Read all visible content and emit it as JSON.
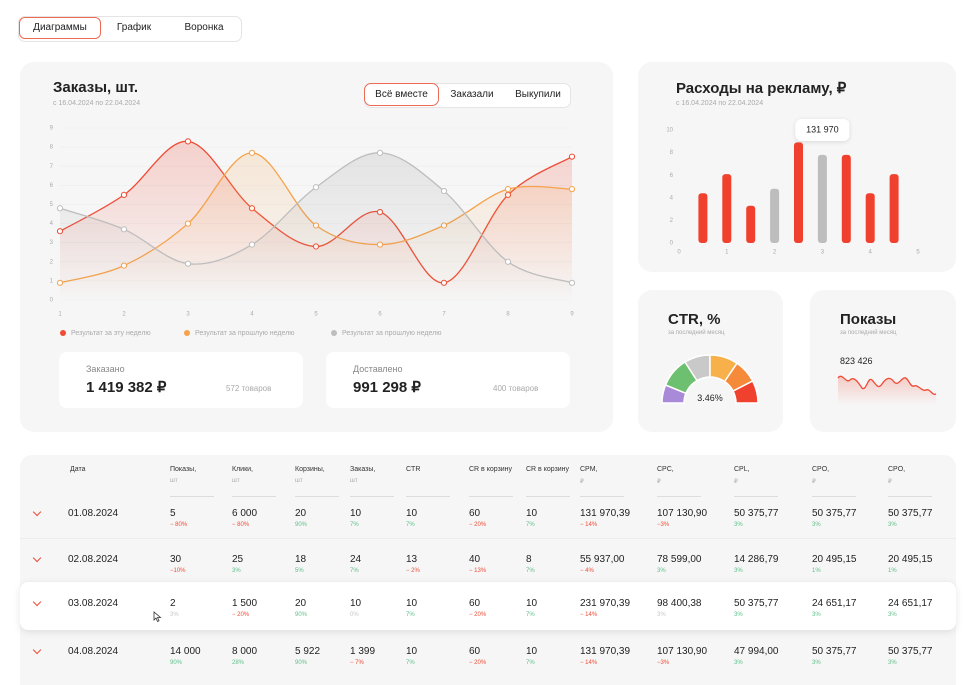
{
  "tabs": {
    "items": [
      "Диаграммы",
      "График",
      "Воронка"
    ],
    "active": 0
  },
  "orders": {
    "title": "Заказы, шт.",
    "subtitle": "с 16.04.2024 по 22.04.2024",
    "toggle": {
      "items": [
        "Всё вместе",
        "Заказали",
        "Выкупили"
      ],
      "active": 0
    },
    "stats": [
      {
        "label": "Заказано",
        "value": "1 419 382 ₽",
        "note": "572 товаров"
      },
      {
        "label": "Доставлено",
        "value": "991 298 ₽",
        "note": "400 товаров"
      }
    ]
  },
  "ads": {
    "title": "Расходы на рекламу, ₽",
    "subtitle": "с 16.04.2024 по 22.04.2024"
  },
  "ctr": {
    "title": "CTR, %",
    "subtitle": "за последний месяц",
    "value": "3.46%"
  },
  "impressions": {
    "title": "Показы",
    "subtitle": "за последний месяц",
    "value": "823 426"
  },
  "chart_data": [
    {
      "type": "line",
      "x": [
        1,
        2,
        3,
        4,
        5,
        6,
        7,
        8,
        9
      ],
      "xlim": [
        1,
        9
      ],
      "xticks": [
        1,
        2,
        3,
        4,
        5,
        6,
        7,
        8,
        9
      ],
      "ylim": [
        0,
        9
      ],
      "yticks": [
        0,
        1,
        2,
        3,
        4,
        5,
        6,
        7,
        8,
        9
      ],
      "grid": true,
      "legend": "bottom",
      "series": [
        {
          "name": "Результат за эту неделю",
          "color": "#ef4b35",
          "values": [
            3.6,
            5.5,
            8.3,
            4.8,
            2.8,
            4.6,
            0.9,
            5.5,
            7.5
          ]
        },
        {
          "name": "Результат за прошлую неделю",
          "color": "#f5a24a",
          "values": [
            0.9,
            1.8,
            4.0,
            7.7,
            3.9,
            2.9,
            3.9,
            5.8,
            5.8
          ]
        },
        {
          "name": "Результат за прошлую неделю",
          "color": "#bdbdbd",
          "values": [
            4.8,
            3.7,
            1.9,
            2.9,
            5.9,
            7.7,
            5.7,
            2.0,
            0.9
          ]
        }
      ]
    },
    {
      "type": "bar",
      "x": [
        0.5,
        1,
        1.5,
        2,
        2.5,
        3,
        3.5,
        4,
        4.5
      ],
      "xlim": [
        0,
        5
      ],
      "xticks": [
        0,
        1,
        2,
        3,
        4,
        5
      ],
      "ylim": [
        0,
        10
      ],
      "yticks": [
        0,
        2,
        4,
        6,
        8,
        10
      ],
      "values": [
        4.4,
        6.1,
        3.3,
        4.8,
        8.9,
        7.8,
        7.8,
        4.4,
        6.1
      ],
      "colors": [
        "#f0412e",
        "#f0412e",
        "#f0412e",
        "#bdbdbd",
        "#f0412e",
        "#bdbdbd",
        "#f0412e",
        "#f0412e",
        "#f0412e"
      ],
      "annotation": {
        "text": "131 970",
        "x": 3
      }
    }
  ],
  "table": {
    "headers": [
      {
        "label": "Дата"
      },
      {
        "label": "Показы,",
        "unit": "шт"
      },
      {
        "label": "Клики,",
        "unit": "шт"
      },
      {
        "label": "Корзины,",
        "unit": "шт"
      },
      {
        "label": "Заказы,",
        "unit": "шт"
      },
      {
        "label": "CTR"
      },
      {
        "label": "CR в корзину"
      },
      {
        "label": "CR в корзину"
      },
      {
        "label": "CPM,",
        "unit": "₽"
      },
      {
        "label": "CPC,",
        "unit": "₽"
      },
      {
        "label": "CPL,",
        "unit": "₽"
      },
      {
        "label": "CPO,",
        "unit": "₽"
      },
      {
        "label": "CPO,",
        "unit": "₽"
      }
    ],
    "highlighted_row": 2,
    "rows": [
      {
        "date": "01.08.2024",
        "cells": [
          {
            "value": "5",
            "change": "− 80%",
            "trend": "down"
          },
          {
            "value": "6 000",
            "change": "− 80%",
            "trend": "down"
          },
          {
            "value": "20",
            "change": "90%",
            "trend": "up"
          },
          {
            "value": "10",
            "change": "7%",
            "trend": "up"
          },
          {
            "value": "10",
            "change": "7%",
            "trend": "up"
          },
          {
            "value": "60",
            "change": "− 20%",
            "trend": "down"
          },
          {
            "value": "10",
            "change": "7%",
            "trend": "up"
          },
          {
            "value": "131 970,39",
            "change": "− 14%",
            "trend": "down"
          },
          {
            "value": "107 130,90",
            "change": "−3%",
            "trend": "down"
          },
          {
            "value": "50 375,77",
            "change": "3%",
            "trend": "up"
          },
          {
            "value": "50 375,77",
            "change": "3%",
            "trend": "up"
          },
          {
            "value": "50 375,77",
            "change": "3%",
            "trend": "up"
          }
        ]
      },
      {
        "date": "02.08.2024",
        "cells": [
          {
            "value": "30",
            "change": "−10%",
            "trend": "down"
          },
          {
            "value": "25",
            "change": "3%",
            "trend": "up"
          },
          {
            "value": "18",
            "change": "5%",
            "trend": "up"
          },
          {
            "value": "24",
            "change": "7%",
            "trend": "up"
          },
          {
            "value": "13",
            "change": "− 2%",
            "trend": "down"
          },
          {
            "value": "40",
            "change": "− 13%",
            "trend": "down"
          },
          {
            "value": "8",
            "change": "7%",
            "trend": "up"
          },
          {
            "value": "55 937,00",
            "change": "− 4%",
            "trend": "down"
          },
          {
            "value": "78 599,00",
            "change": "3%",
            "trend": "up"
          },
          {
            "value": "14 286,79",
            "change": "3%",
            "trend": "up"
          },
          {
            "value": "20 495,15",
            "change": "1%",
            "trend": "up"
          },
          {
            "value": "20 495,15",
            "change": "1%",
            "trend": "up"
          }
        ]
      },
      {
        "date": "03.08.2024",
        "cells": [
          {
            "value": "2",
            "change": "3%",
            "trend": "neutral"
          },
          {
            "value": "1 500",
            "change": "− 20%",
            "trend": "down"
          },
          {
            "value": "20",
            "change": "90%",
            "trend": "up"
          },
          {
            "value": "10",
            "change": "0%",
            "trend": "neutral"
          },
          {
            "value": "10",
            "change": "7%",
            "trend": "up"
          },
          {
            "value": "60",
            "change": "− 20%",
            "trend": "down"
          },
          {
            "value": "10",
            "change": "7%",
            "trend": "up"
          },
          {
            "value": "231 970,39",
            "change": "− 14%",
            "trend": "down"
          },
          {
            "value": "98 400,38",
            "change": "3%",
            "trend": "neutral"
          },
          {
            "value": "50 375,77",
            "change": "3%",
            "trend": "up"
          },
          {
            "value": "24 651,17",
            "change": "3%",
            "trend": "up"
          },
          {
            "value": "24 651,17",
            "change": "3%",
            "trend": "up"
          }
        ]
      },
      {
        "date": "04.08.2024",
        "cells": [
          {
            "value": "14 000",
            "change": "90%",
            "trend": "up"
          },
          {
            "value": "8 000",
            "change": "28%",
            "trend": "up"
          },
          {
            "value": "5 922",
            "change": "90%",
            "trend": "up"
          },
          {
            "value": "1 399",
            "change": "− 7%",
            "trend": "down"
          },
          {
            "value": "10",
            "change": "7%",
            "trend": "up"
          },
          {
            "value": "60",
            "change": "− 20%",
            "trend": "down"
          },
          {
            "value": "10",
            "change": "7%",
            "trend": "up"
          },
          {
            "value": "131 970,39",
            "change": "− 14%",
            "trend": "down"
          },
          {
            "value": "107 130,90",
            "change": "−3%",
            "trend": "down"
          },
          {
            "value": "47 994,00",
            "change": "3%",
            "trend": "up"
          },
          {
            "value": "50 375,77",
            "change": "3%",
            "trend": "up"
          },
          {
            "value": "50 375,77",
            "change": "3%",
            "trend": "up"
          }
        ]
      }
    ]
  }
}
